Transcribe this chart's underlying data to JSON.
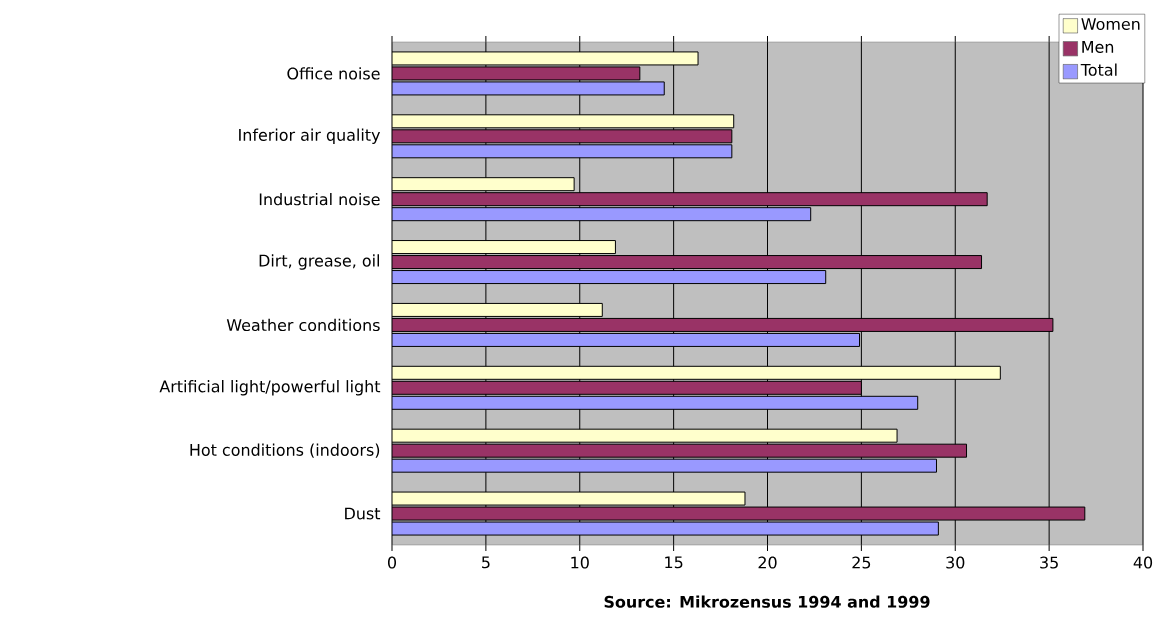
{
  "chart_data": {
    "type": "bar",
    "orientation": "horizontal",
    "categories": [
      "Office noise",
      "Inferior air quality",
      "Industrial noise",
      "Dirt, grease, oil",
      "Weather conditions",
      "Artificial light/powerful light",
      "Hot conditions (indoors)",
      "Dust"
    ],
    "series": [
      {
        "name": "Women",
        "color": "#ffffcc",
        "values": [
          16.3,
          18.2,
          9.7,
          11.9,
          11.2,
          32.4,
          26.9,
          18.8
        ]
      },
      {
        "name": "Men",
        "color": "#993366",
        "values": [
          13.2,
          18.1,
          31.7,
          31.4,
          35.2,
          25.0,
          30.6,
          36.9
        ]
      },
      {
        "name": "Total",
        "color": "#9999ff",
        "values": [
          14.5,
          18.1,
          22.3,
          23.1,
          24.9,
          28.0,
          29.0,
          29.1
        ]
      }
    ],
    "xlim": [
      0,
      40
    ],
    "xticks": [
      0,
      5,
      10,
      15,
      20,
      25,
      30,
      35,
      40
    ],
    "grid": "x",
    "legend": "top right",
    "annotations": [
      "**Source: Mikrozensus 1994 and 1999**"
    ]
  }
}
